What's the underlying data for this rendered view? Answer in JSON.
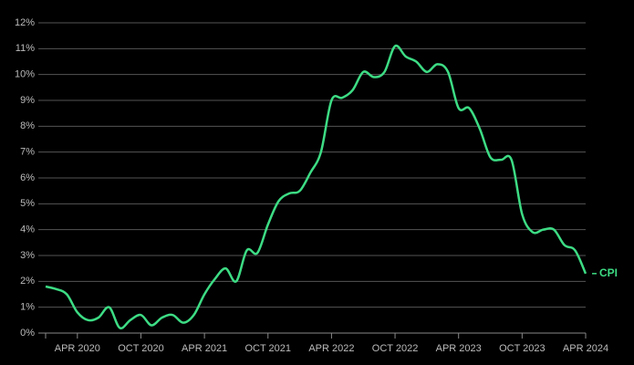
{
  "chart_data": {
    "type": "line",
    "categories": [
      null,
      null,
      null,
      "APR 2020",
      null,
      null,
      null,
      null,
      null,
      "OCT 2020",
      null,
      null,
      null,
      null,
      null,
      "APR 2021",
      null,
      null,
      null,
      null,
      null,
      "OCT 2021",
      null,
      null,
      null,
      null,
      null,
      "APR 2022",
      null,
      null,
      null,
      null,
      null,
      "OCT 2022",
      null,
      null,
      null,
      null,
      null,
      "APR 2023",
      null,
      null,
      null,
      null,
      null,
      "OCT 2023",
      null,
      null,
      null,
      null,
      null,
      "APR 2024"
    ],
    "series": [
      {
        "name": "CPI",
        "color": "#3ddc84",
        "values": [
          1.8,
          1.7,
          1.5,
          0.8,
          0.5,
          0.6,
          1.0,
          0.2,
          0.5,
          0.7,
          0.3,
          0.6,
          0.7,
          0.4,
          0.7,
          1.5,
          2.1,
          2.5,
          2.0,
          3.2,
          3.1,
          4.2,
          5.1,
          5.4,
          5.5,
          6.2,
          7.0,
          9.0,
          9.1,
          9.4,
          10.1,
          9.9,
          10.1,
          11.1,
          10.7,
          10.5,
          10.1,
          10.4,
          10.1,
          8.7,
          8.7,
          7.9,
          6.8,
          6.7,
          6.7,
          4.6,
          3.9,
          4.0,
          4.0,
          3.4,
          3.2,
          2.3
        ]
      }
    ],
    "ylim": [
      0,
      12
    ],
    "yticks": [
      {
        "value": 0,
        "label": "0%"
      },
      {
        "value": 1,
        "label": "1%"
      },
      {
        "value": 2,
        "label": "2%"
      },
      {
        "value": 3,
        "label": "3%"
      },
      {
        "value": 4,
        "label": "4%"
      },
      {
        "value": 5,
        "label": "5%"
      },
      {
        "value": 6,
        "label": "6%"
      },
      {
        "value": 7,
        "label": "7%"
      },
      {
        "value": 8,
        "label": "8%"
      },
      {
        "value": 9,
        "label": "9%"
      },
      {
        "value": 10,
        "label": "10%"
      },
      {
        "value": 11,
        "label": "11%"
      },
      {
        "value": 12,
        "label": "12%"
      }
    ],
    "grid": true
  }
}
